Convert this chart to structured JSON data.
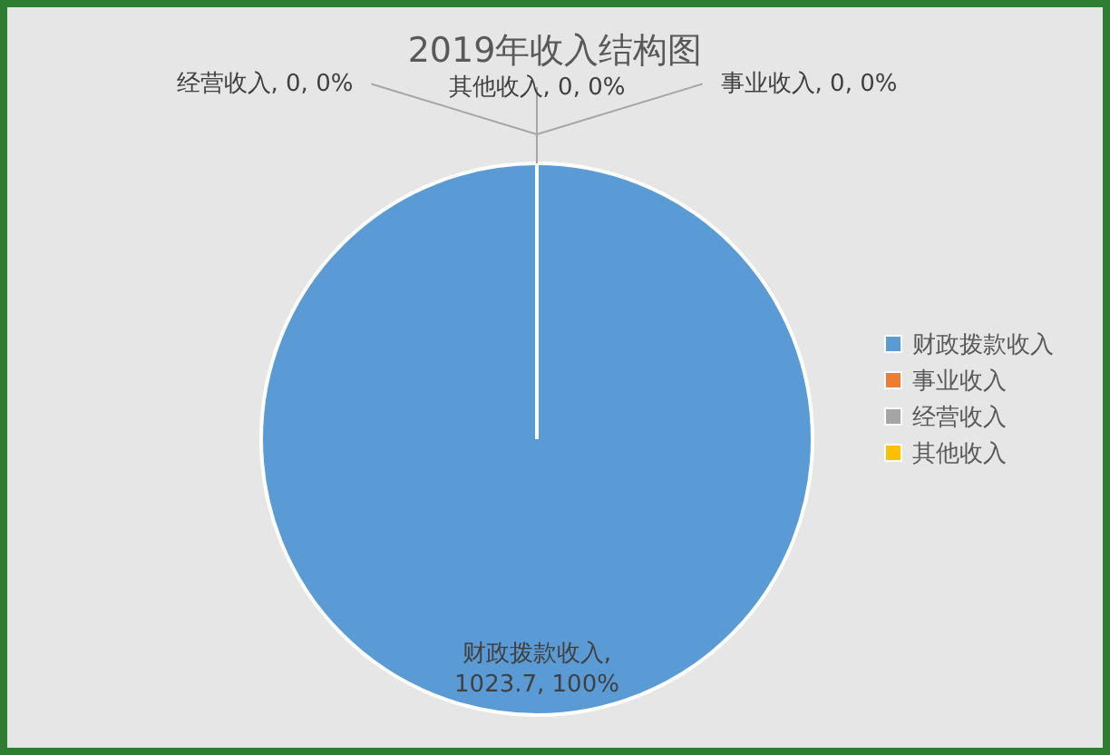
{
  "chart_data": {
    "type": "pie",
    "title": "2019年收入结构图",
    "categories": [
      "财政拨款收入",
      "事业收入",
      "经营收入",
      "其他收入"
    ],
    "values": [
      1023.7,
      0,
      0,
      0
    ],
    "colors": [
      "#5b9bd5",
      "#ed7d31",
      "#a5a5a5",
      "#ffc000"
    ],
    "value_labels": [
      "财政拨款收入, 1023.7, 100%",
      "事业收入, 0, 0%",
      "经营收入, 0, 0%",
      "其他收入, 0, 0%"
    ],
    "legend": "right"
  }
}
